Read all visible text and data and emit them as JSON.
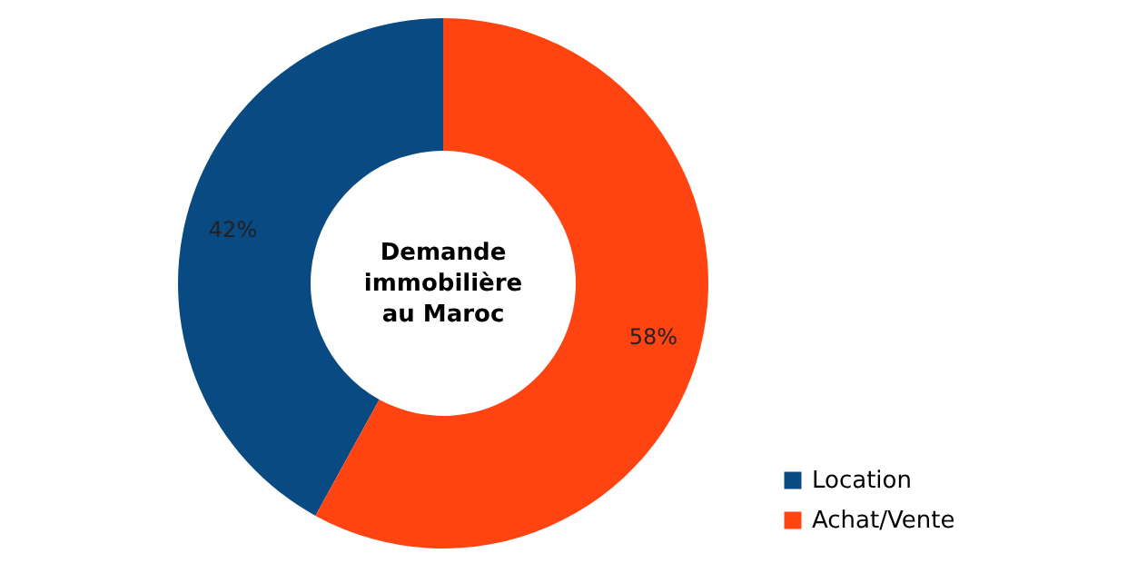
{
  "chart_data": {
    "type": "donut",
    "title": "Demande immobilière au Maroc",
    "categories": [
      "Location",
      "Achat/Vente"
    ],
    "values": [
      42,
      58
    ],
    "colors": [
      "#0a4a82",
      "#ff4411"
    ],
    "data_labels": true,
    "value_labels": [
      "42%",
      "58%"
    ],
    "legend": "bottom right"
  }
}
